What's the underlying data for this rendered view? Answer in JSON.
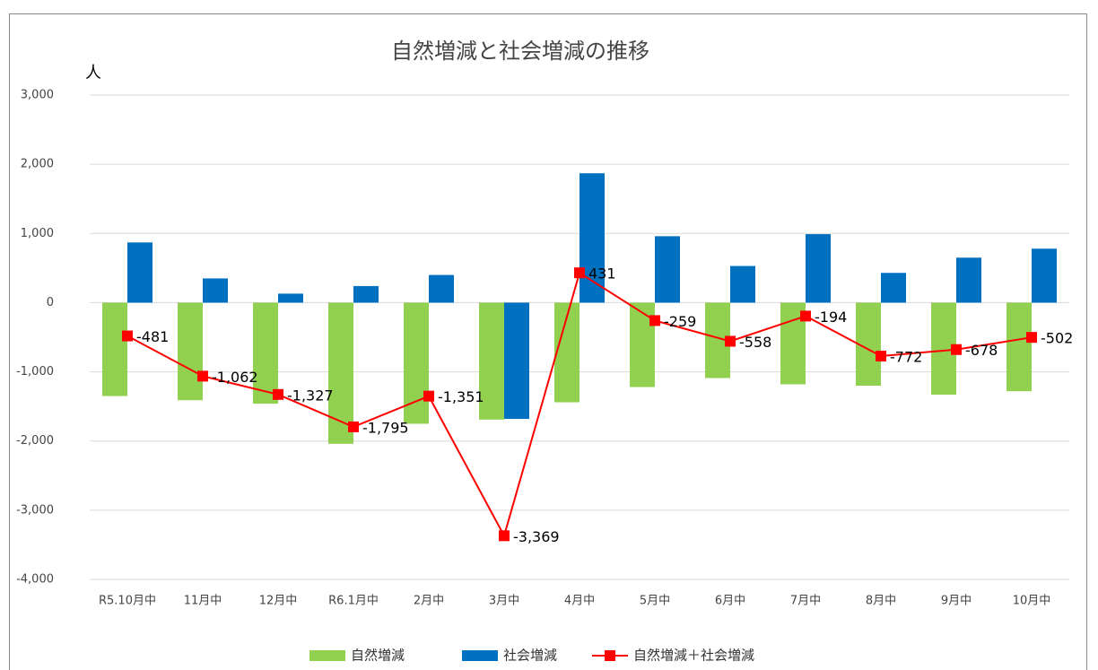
{
  "chart_data": {
    "type": "bar",
    "title": "自然増減と社会増減の推移",
    "y_label": "人",
    "categories": [
      "R5.10月中",
      "11月中",
      "12月中",
      "R6.1月中",
      "2月中",
      "3月中",
      "4月中",
      "5月中",
      "6月中",
      "7月中",
      "8月中",
      "9月中",
      "10月中"
    ],
    "series": [
      {
        "name": "自然増減",
        "type": "bar",
        "color": "#92d050",
        "values": [
          -1350,
          -1410,
          -1460,
          -2040,
          -1750,
          -1690,
          -1440,
          -1220,
          -1090,
          -1180,
          -1200,
          -1330,
          -1280
        ]
      },
      {
        "name": "社会増減",
        "type": "bar",
        "color": "#0070c0",
        "values": [
          870,
          350,
          130,
          240,
          400,
          -1680,
          1870,
          960,
          530,
          990,
          430,
          650,
          780
        ]
      },
      {
        "name": "自然増減＋社会増減",
        "type": "line",
        "color": "#ff0000",
        "values": [
          -481,
          -1062,
          -1327,
          -1795,
          -1351,
          -3369,
          431,
          -259,
          -558,
          -194,
          -772,
          -678,
          -502
        ],
        "value_labels": [
          "-481",
          "-1,062",
          "-1,327",
          "-1,795",
          "-1,351",
          "-3,369",
          "431",
          "-259",
          "-558",
          "-194",
          "-772",
          "-678",
          "-502"
        ]
      }
    ],
    "ylim": [
      -4000,
      3000
    ],
    "yticks": [
      {
        "value": -4000,
        "label": "-4,000"
      },
      {
        "value": -3000,
        "label": "-3,000"
      },
      {
        "value": -2000,
        "label": "-2,000"
      },
      {
        "value": -1000,
        "label": "-1,000"
      },
      0,
      {
        "value": 1000,
        "label": "1,000"
      },
      {
        "value": 2000,
        "label": "2,000"
      },
      {
        "value": 3000,
        "label": "3,000"
      }
    ],
    "grid": true,
    "legend": "bottom"
  }
}
